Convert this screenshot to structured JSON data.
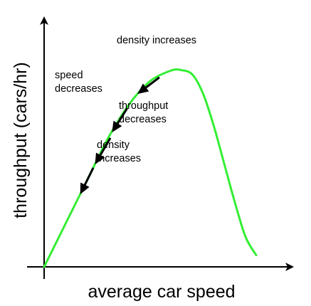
{
  "chart_data": {
    "type": "line",
    "xlabel": "average car speed",
    "ylabel": "throughput (cars/hr)",
    "grid": false,
    "legend": "none",
    "x_ticks": false,
    "y_ticks": false,
    "xlim": [
      0,
      10
    ],
    "ylim": [
      0,
      10
    ],
    "series": [
      {
        "color": "#33ee33",
        "x": [
          0,
          1,
          2,
          3,
          4,
          5,
          6,
          6.5,
          7,
          7.5,
          8,
          8.5,
          9,
          9.5,
          10
        ],
        "y": [
          0,
          2,
          4,
          6,
          7.6,
          8.7,
          9.2,
          9.21,
          9.0,
          8.1,
          6.6,
          4.8,
          3.0,
          1.4,
          0.55
        ]
      }
    ],
    "annotations": [
      {
        "lines": [
          "density increases"
        ]
      },
      {
        "lines": [
          "speed",
          "decreases"
        ]
      },
      {
        "lines": [
          "throughput",
          "decreases"
        ]
      },
      {
        "lines": [
          "density",
          "increases"
        ]
      }
    ],
    "arrows": [
      {
        "from": [
          5.4,
          8.85
        ],
        "to": [
          4.4,
          8.1
        ],
        "color": "#000000"
      },
      {
        "from": [
          3.9,
          7.4
        ],
        "to": [
          3.2,
          6.3
        ],
        "color": "#000000"
      },
      {
        "from": [
          3.1,
          6.0
        ],
        "to": [
          2.4,
          4.8
        ],
        "color": "#000000"
      },
      {
        "from": [
          2.3,
          4.6
        ],
        "to": [
          1.7,
          3.4
        ],
        "color": "#000000"
      }
    ],
    "colors": {
      "curve": "#33ee33",
      "axes": "#000000",
      "arrows": "#000000"
    }
  }
}
